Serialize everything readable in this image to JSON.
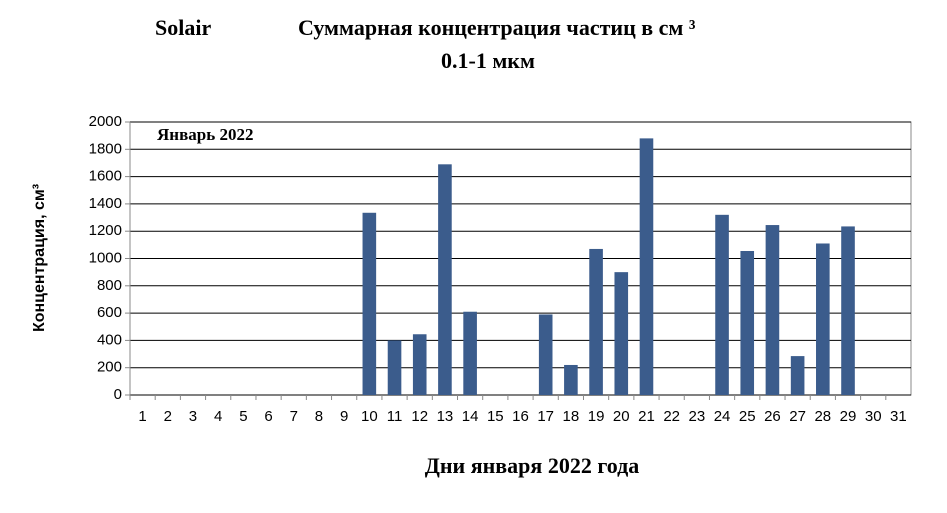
{
  "chart_data": {
    "type": "bar",
    "station": "Solair",
    "title": "Суммарная концентрация частиц  в см ³",
    "subtitle": "0.1-1 мкм",
    "annotation": "Январь 2022",
    "x_label": "Дни января 2022 года",
    "y_label": "Концентрация, см³",
    "categories": [
      "1",
      "2",
      "3",
      "4",
      "5",
      "6",
      "7",
      "8",
      "9",
      "10",
      "11",
      "12",
      "13",
      "14",
      "15",
      "16",
      "17",
      "18",
      "19",
      "20",
      "21",
      "22",
      "23",
      "24",
      "25",
      "26",
      "27",
      "28",
      "29",
      "30",
      "31"
    ],
    "values": [
      null,
      null,
      null,
      null,
      null,
      null,
      null,
      null,
      null,
      1335,
      400,
      445,
      1690,
      610,
      null,
      null,
      590,
      220,
      1070,
      900,
      1880,
      null,
      null,
      1320,
      1055,
      1245,
      285,
      1110,
      1235,
      null,
      null
    ],
    "color": "#3b5c8c",
    "ylim": [
      0,
      2000
    ],
    "yticks": [
      0,
      200,
      400,
      600,
      800,
      1000,
      1200,
      1400,
      1600,
      1800,
      2000
    ],
    "grid": true
  }
}
